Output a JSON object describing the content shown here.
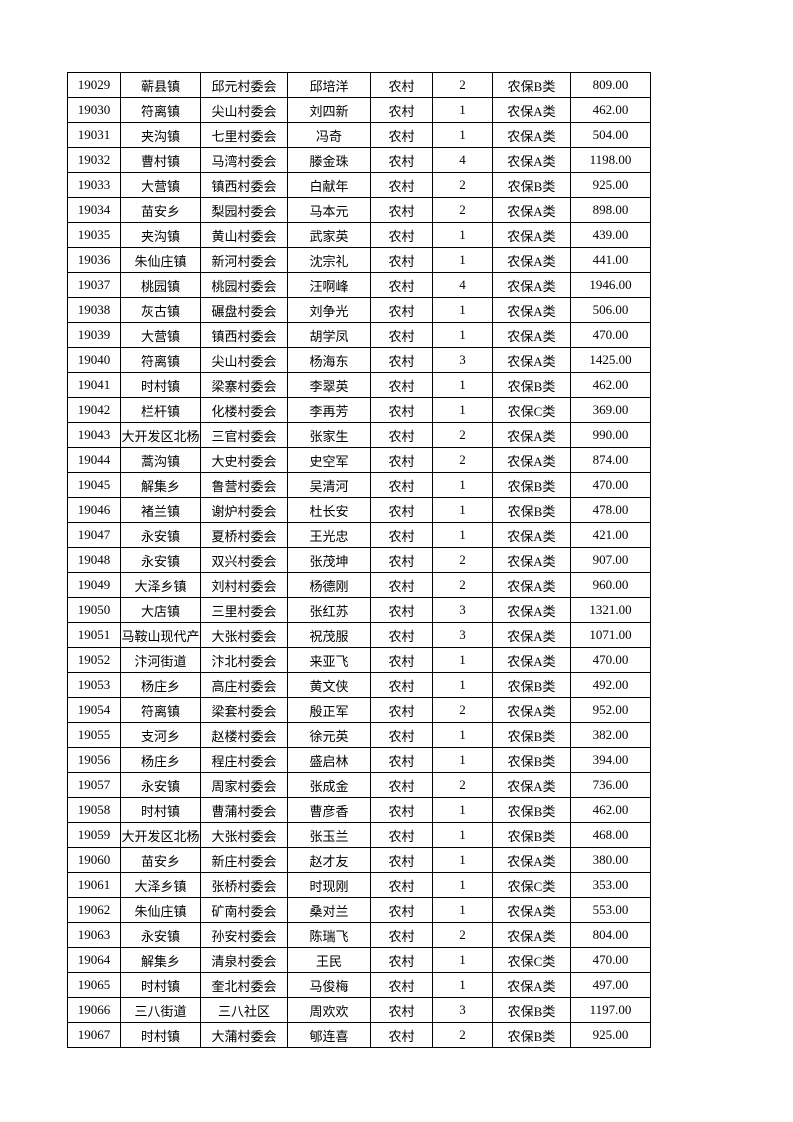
{
  "table": {
    "rows": [
      [
        "19029",
        "蕲县镇",
        "邱元村委会",
        "邱培洋",
        "农村",
        "2",
        "农保B类",
        "809.00"
      ],
      [
        "19030",
        "符离镇",
        "尖山村委会",
        "刘四新",
        "农村",
        "1",
        "农保A类",
        "462.00"
      ],
      [
        "19031",
        "夹沟镇",
        "七里村委会",
        "冯奇",
        "农村",
        "1",
        "农保A类",
        "504.00"
      ],
      [
        "19032",
        "曹村镇",
        "马湾村委会",
        "滕金珠",
        "农村",
        "4",
        "农保A类",
        "1198.00"
      ],
      [
        "19033",
        "大营镇",
        "镇西村委会",
        "白献年",
        "农村",
        "2",
        "农保B类",
        "925.00"
      ],
      [
        "19034",
        "苗安乡",
        "梨园村委会",
        "马本元",
        "农村",
        "2",
        "农保A类",
        "898.00"
      ],
      [
        "19035",
        "夹沟镇",
        "黄山村委会",
        "武家英",
        "农村",
        "1",
        "农保A类",
        "439.00"
      ],
      [
        "19036",
        "朱仙庄镇",
        "新河村委会",
        "沈宗礼",
        "农村",
        "1",
        "农保A类",
        "441.00"
      ],
      [
        "19037",
        "桃园镇",
        "桃园村委会",
        "汪啊峰",
        "农村",
        "4",
        "农保A类",
        "1946.00"
      ],
      [
        "19038",
        "灰古镇",
        "碾盘村委会",
        "刘争光",
        "农村",
        "1",
        "农保A类",
        "506.00"
      ],
      [
        "19039",
        "大营镇",
        "镇西村委会",
        "胡学凤",
        "农村",
        "1",
        "农保A类",
        "470.00"
      ],
      [
        "19040",
        "符离镇",
        "尖山村委会",
        "杨海东",
        "农村",
        "3",
        "农保A类",
        "1425.00"
      ],
      [
        "19041",
        "时村镇",
        "梁寨村委会",
        "李翠英",
        "农村",
        "1",
        "农保B类",
        "462.00"
      ],
      [
        "19042",
        "栏杆镇",
        "化楼村委会",
        "李再芳",
        "农村",
        "1",
        "农保C类",
        "369.00"
      ],
      [
        "19043",
        "大开发区北杨",
        "三官村委会",
        "张家生",
        "农村",
        "2",
        "农保A类",
        "990.00"
      ],
      [
        "19044",
        "蒿沟镇",
        "大史村委会",
        "史空军",
        "农村",
        "2",
        "农保A类",
        "874.00"
      ],
      [
        "19045",
        "解集乡",
        "鲁营村委会",
        "吴清河",
        "农村",
        "1",
        "农保B类",
        "470.00"
      ],
      [
        "19046",
        "褚兰镇",
        "谢炉村委会",
        "杜长安",
        "农村",
        "1",
        "农保B类",
        "478.00"
      ],
      [
        "19047",
        "永安镇",
        "夏桥村委会",
        "王光忠",
        "农村",
        "1",
        "农保A类",
        "421.00"
      ],
      [
        "19048",
        "永安镇",
        "双兴村委会",
        "张茂坤",
        "农村",
        "2",
        "农保A类",
        "907.00"
      ],
      [
        "19049",
        "大泽乡镇",
        "刘村村委会",
        "杨德刚",
        "农村",
        "2",
        "农保A类",
        "960.00"
      ],
      [
        "19050",
        "大店镇",
        "三里村委会",
        "张红苏",
        "农村",
        "3",
        "农保A类",
        "1321.00"
      ],
      [
        "19051",
        "马鞍山现代产",
        "大张村委会",
        "祝茂服",
        "农村",
        "3",
        "农保A类",
        "1071.00"
      ],
      [
        "19052",
        "汴河街道",
        "汴北村委会",
        "来亚飞",
        "农村",
        "1",
        "农保A类",
        "470.00"
      ],
      [
        "19053",
        "杨庄乡",
        "高庄村委会",
        "黄文侠",
        "农村",
        "1",
        "农保B类",
        "492.00"
      ],
      [
        "19054",
        "符离镇",
        "梁套村委会",
        "殷正军",
        "农村",
        "2",
        "农保A类",
        "952.00"
      ],
      [
        "19055",
        "支河乡",
        "赵楼村委会",
        "徐元英",
        "农村",
        "1",
        "农保B类",
        "382.00"
      ],
      [
        "19056",
        "杨庄乡",
        "程庄村委会",
        "盛启林",
        "农村",
        "1",
        "农保B类",
        "394.00"
      ],
      [
        "19057",
        "永安镇",
        "周家村委会",
        "张成金",
        "农村",
        "2",
        "农保A类",
        "736.00"
      ],
      [
        "19058",
        "时村镇",
        "曹蒲村委会",
        "曹彦香",
        "农村",
        "1",
        "农保B类",
        "462.00"
      ],
      [
        "19059",
        "大开发区北杨",
        "大张村委会",
        "张玉兰",
        "农村",
        "1",
        "农保B类",
        "468.00"
      ],
      [
        "19060",
        "苗安乡",
        "新庄村委会",
        "赵才友",
        "农村",
        "1",
        "农保A类",
        "380.00"
      ],
      [
        "19061",
        "大泽乡镇",
        "张桥村委会",
        "时现刚",
        "农村",
        "1",
        "农保C类",
        "353.00"
      ],
      [
        "19062",
        "朱仙庄镇",
        "矿南村委会",
        "桑对兰",
        "农村",
        "1",
        "农保A类",
        "553.00"
      ],
      [
        "19063",
        "永安镇",
        "孙安村委会",
        "陈瑞飞",
        "农村",
        "2",
        "农保A类",
        "804.00"
      ],
      [
        "19064",
        "解集乡",
        "清泉村委会",
        "王民",
        "农村",
        "1",
        "农保C类",
        "470.00"
      ],
      [
        "19065",
        "时村镇",
        "奎北村委会",
        "马俊梅",
        "农村",
        "1",
        "农保A类",
        "497.00"
      ],
      [
        "19066",
        "三八街道",
        "三八社区",
        "周欢欢",
        "农村",
        "3",
        "农保B类",
        "1197.00"
      ],
      [
        "19067",
        "时村镇",
        "大蒲村委会",
        "郇连喜",
        "农村",
        "2",
        "农保B类",
        "925.00"
      ]
    ]
  }
}
